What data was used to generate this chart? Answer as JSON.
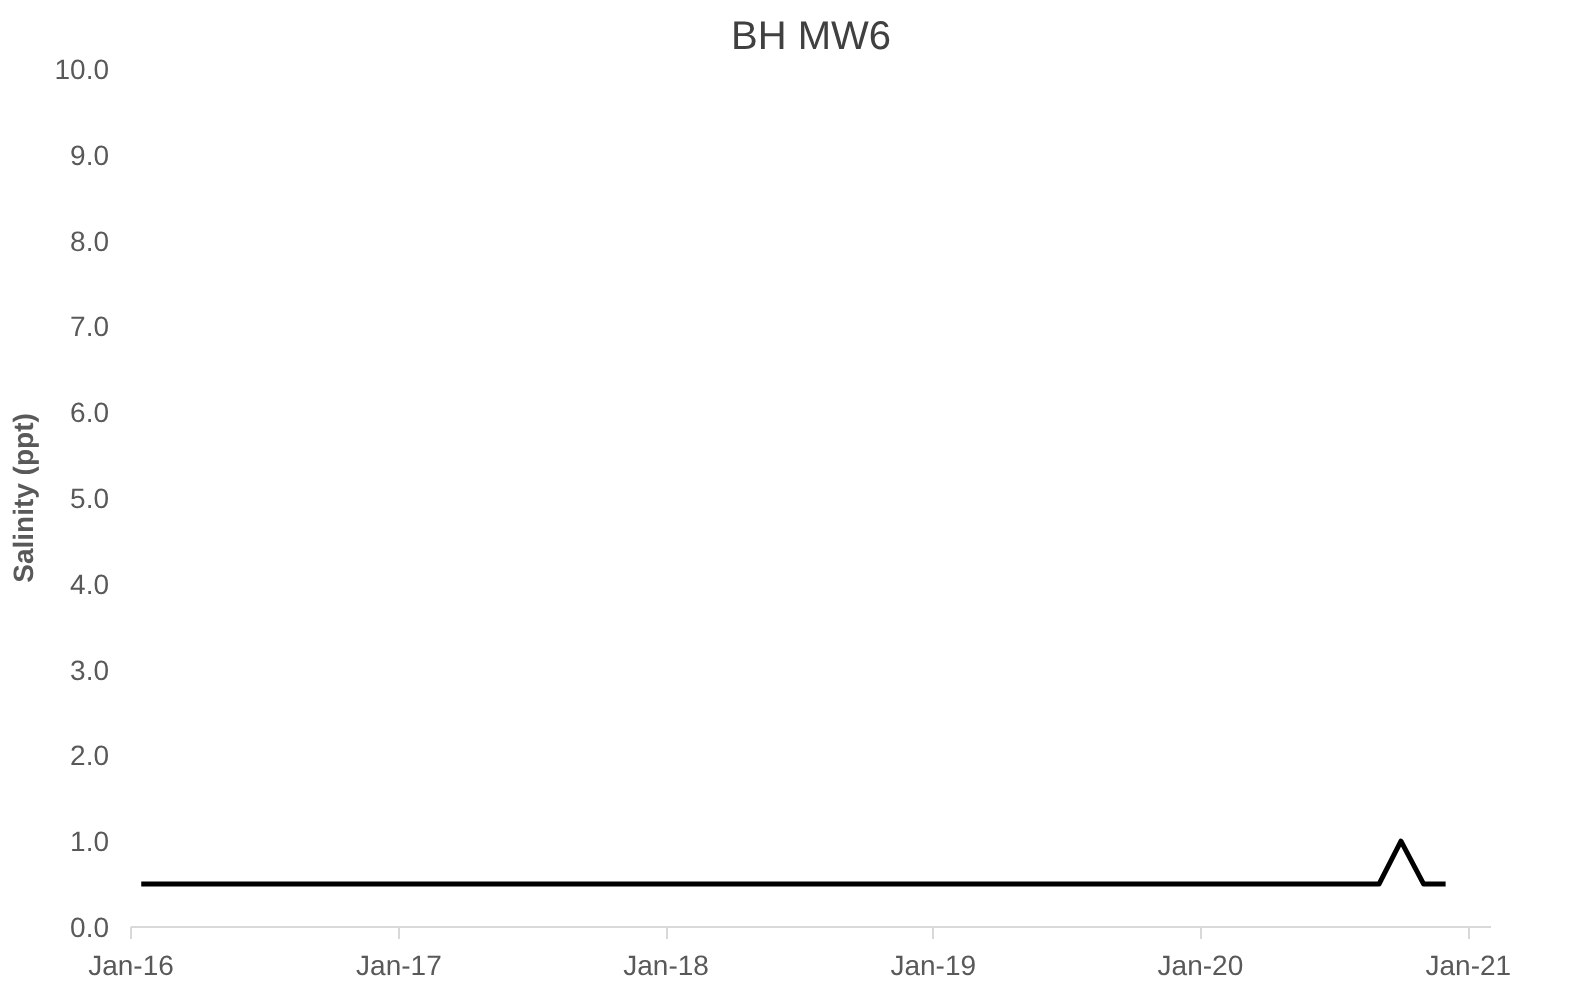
{
  "chart_data": {
    "type": "line",
    "title": "BH MW6",
    "ylabel": "Salinity (ppt)",
    "x": [
      "2016-01-15",
      "2020-09-01",
      "2020-10-01",
      "2020-11-01",
      "2020-12-01"
    ],
    "series": [
      {
        "color": "#000000",
        "values": [
          0.5,
          0.5,
          1.0,
          0.5,
          0.5
        ]
      }
    ],
    "xlim": [
      "2016-01-01",
      "2021-02-01"
    ],
    "xticks": [
      {
        "value": "2016-01-01",
        "label": "Jan-16"
      },
      {
        "value": "2017-01-01",
        "label": "Jan-17"
      },
      {
        "value": "2018-01-01",
        "label": "Jan-18"
      },
      {
        "value": "2019-01-01",
        "label": "Jan-19"
      },
      {
        "value": "2020-01-01",
        "label": "Jan-20"
      },
      {
        "value": "2021-01-01",
        "label": "Jan-21"
      }
    ],
    "ylim": [
      0,
      10
    ],
    "yticks": [
      {
        "value": 0,
        "label": "0.0"
      },
      {
        "value": 1,
        "label": "1.0"
      },
      {
        "value": 2,
        "label": "2.0"
      },
      {
        "value": 3,
        "label": "3.0"
      },
      {
        "value": 4,
        "label": "4.0"
      },
      {
        "value": 5,
        "label": "5.0"
      },
      {
        "value": 6,
        "label": "6.0"
      },
      {
        "value": 7,
        "label": "7.0"
      },
      {
        "value": 8,
        "label": "8.0"
      },
      {
        "value": 9,
        "label": "9.0"
      },
      {
        "value": 10,
        "label": "10.0"
      }
    ],
    "grid": false,
    "marker": "none",
    "line_style": "solid"
  }
}
